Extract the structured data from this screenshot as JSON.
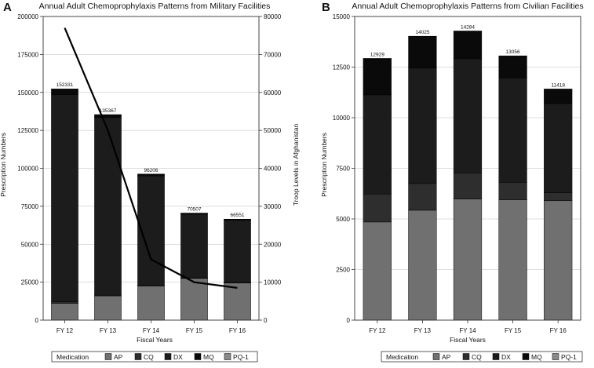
{
  "panels": {
    "A": {
      "letter": "A",
      "title": "Annual Adult Chemoprophylaxis Patterns from Military Facilities"
    },
    "B": {
      "letter": "B",
      "title": "Annual Adult Chemoprophylaxis Patterns from Civilian Facilities"
    }
  },
  "colors": {
    "AP": "#707070",
    "CQ": "#2e2e2e",
    "DX": "#1c1c1c",
    "MQ": "#0a0a0a",
    "PQ-1": "#8a8a8a",
    "troop_line": "#000000"
  },
  "chart_data": [
    {
      "panel": "A",
      "type": "bar",
      "stacked": true,
      "title": "Annual Adult Chemoprophylaxis Patterns from Military Facilities",
      "xlabel": "Fiscal Years",
      "ylabel": "Prescription Numbers",
      "y2label": "Troop Levels in Afghanistan",
      "categories": [
        "FY 12",
        "FY 13",
        "FY 14",
        "FY 15",
        "FY 16"
      ],
      "ylim": [
        0,
        200000
      ],
      "y_ticks": [
        0,
        25000,
        50000,
        75000,
        100000,
        125000,
        150000,
        175000,
        200000
      ],
      "y2lim": [
        0,
        80000
      ],
      "y2_ticks": [
        0,
        10000,
        20000,
        30000,
        40000,
        50000,
        60000,
        70000,
        80000
      ],
      "grid": true,
      "series": [
        {
          "name": "AP",
          "values": [
            11000,
            16000,
            22500,
            27500,
            24500
          ]
        },
        {
          "name": "CQ",
          "values": [
            1000,
            500,
            500,
            300,
            300
          ]
        },
        {
          "name": "DX",
          "values": [
            136500,
            117000,
            72000,
            42000,
            41000
          ]
        },
        {
          "name": "MQ",
          "values": [
            3500,
            1700,
            1100,
            600,
            650
          ]
        },
        {
          "name": "PQ-1",
          "values": [
            331,
            167,
            106,
            107,
            101
          ]
        }
      ],
      "totals": [
        152331,
        135367,
        96206,
        70507,
        66551
      ],
      "line": {
        "axis": "y2",
        "values": [
          77000,
          50000,
          16000,
          10000,
          8500
        ]
      }
    },
    {
      "panel": "B",
      "type": "bar",
      "stacked": true,
      "title": "Annual Adult Chemoprophylaxis Patterns from Civilian Facilities",
      "xlabel": "Fiscal Years",
      "ylabel": "Prescription Numbers",
      "categories": [
        "FY 12",
        "FY 13",
        "FY 14",
        "FY 15",
        "FY 16"
      ],
      "ylim": [
        0,
        15000
      ],
      "y_ticks": [
        0,
        2500,
        5000,
        7500,
        10000,
        12500,
        15000
      ],
      "grid": true,
      "series": [
        {
          "name": "AP",
          "values": [
            4850,
            5430,
            5980,
            5950,
            5900
          ]
        },
        {
          "name": "CQ",
          "values": [
            1380,
            1320,
            1280,
            860,
            400
          ]
        },
        {
          "name": "DX",
          "values": [
            4900,
            5700,
            5650,
            5150,
            4400
          ]
        },
        {
          "name": "MQ",
          "values": [
            1780,
            1560,
            1360,
            1080,
            700
          ]
        },
        {
          "name": "PQ-1",
          "values": [
            19,
            15,
            14,
            16,
            18
          ]
        }
      ],
      "totals": [
        12929,
        14025,
        14284,
        13056,
        11418
      ]
    }
  ],
  "legend": {
    "title": "Medication",
    "items": [
      "AP",
      "CQ",
      "DX",
      "MQ",
      "PQ-1"
    ]
  }
}
